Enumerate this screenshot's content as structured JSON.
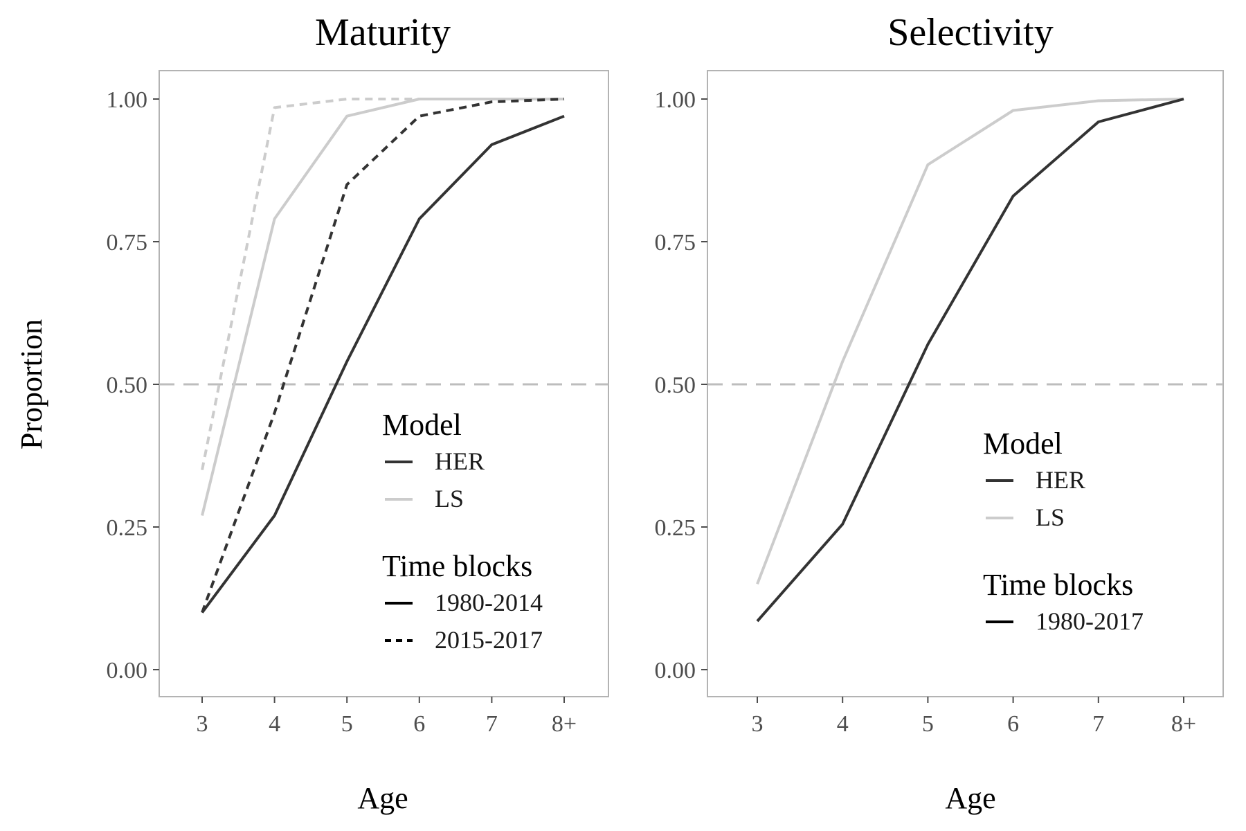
{
  "figure": {
    "y_axis_title": "Proportion"
  },
  "chart_data": [
    {
      "type": "line",
      "title": "Maturity",
      "xlabel": "Age",
      "ylabel": "Proportion",
      "categories": [
        "3",
        "4",
        "5",
        "6",
        "7",
        "8+"
      ],
      "ylim": [
        0,
        1
      ],
      "yticks": [
        "0.00",
        "0.25",
        "0.50",
        "0.75",
        "1.00"
      ],
      "reference_line": {
        "y": 0.5,
        "style": "dashed",
        "color": "#bdbdbd"
      },
      "grid": false,
      "series": [
        {
          "model": "HER",
          "time_block": "1980-2014",
          "color": "#333333",
          "dash": "solid",
          "values": [
            0.1,
            0.27,
            0.54,
            0.79,
            0.92,
            0.97
          ]
        },
        {
          "model": "HER",
          "time_block": "2015-2017",
          "color": "#333333",
          "dash": "dotted",
          "values": [
            0.1,
            0.45,
            0.85,
            0.97,
            0.995,
            1.0
          ]
        },
        {
          "model": "LS",
          "time_block": "1980-2014",
          "color": "#cccccc",
          "dash": "solid",
          "values": [
            0.27,
            0.79,
            0.97,
            1.0,
            1.0,
            1.0
          ]
        },
        {
          "model": "LS",
          "time_block": "2015-2017",
          "color": "#cccccc",
          "dash": "dotted",
          "values": [
            0.35,
            0.985,
            1.0,
            1.0,
            1.0,
            1.0
          ]
        }
      ],
      "legend": {
        "position": "bottom-right",
        "model_title": "Model",
        "model_items": [
          {
            "label": "HER",
            "color": "#333333"
          },
          {
            "label": "LS",
            "color": "#cccccc"
          }
        ],
        "time_title": "Time blocks",
        "time_items": [
          {
            "label": "1980-2014",
            "dash": "solid"
          },
          {
            "label": "2015-2017",
            "dash": "dotted"
          }
        ]
      }
    },
    {
      "type": "line",
      "title": "Selectivity",
      "xlabel": "Age",
      "ylabel": "Proportion",
      "categories": [
        "3",
        "4",
        "5",
        "6",
        "7",
        "8+"
      ],
      "ylim": [
        0,
        1
      ],
      "yticks": [
        "0.00",
        "0.25",
        "0.50",
        "0.75",
        "1.00"
      ],
      "reference_line": {
        "y": 0.5,
        "style": "dashed",
        "color": "#bdbdbd"
      },
      "grid": false,
      "series": [
        {
          "model": "HER",
          "time_block": "1980-2017",
          "color": "#333333",
          "dash": "solid",
          "values": [
            0.085,
            0.255,
            0.57,
            0.83,
            0.96,
            1.0
          ]
        },
        {
          "model": "LS",
          "time_block": "1980-2017",
          "color": "#cccccc",
          "dash": "solid",
          "values": [
            0.15,
            0.54,
            0.885,
            0.98,
            0.997,
            1.0
          ]
        }
      ],
      "legend": {
        "position": "bottom-right",
        "model_title": "Model",
        "model_items": [
          {
            "label": "HER",
            "color": "#333333"
          },
          {
            "label": "LS",
            "color": "#cccccc"
          }
        ],
        "time_title": "Time blocks",
        "time_items": [
          {
            "label": "1980-2017",
            "dash": "solid"
          }
        ]
      }
    }
  ]
}
